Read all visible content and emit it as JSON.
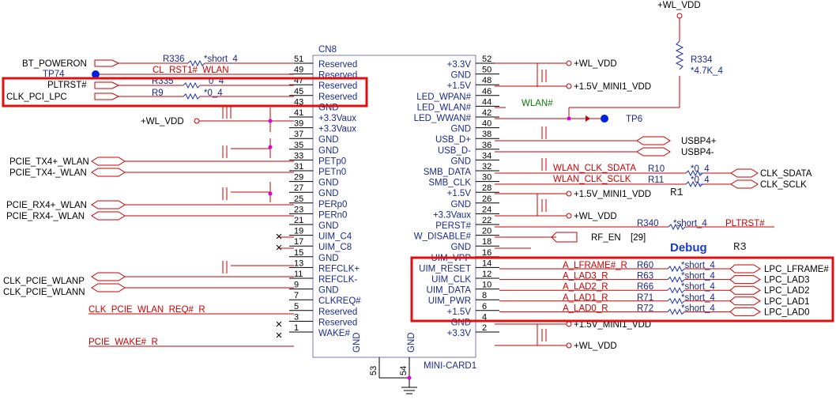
{
  "header": {
    "wl_vdd_top": "+WL_VDD"
  },
  "connector": {
    "ref": "CN8",
    "part": "MINI-CARD1",
    "gnd": "GND",
    "pin53": "53",
    "pin54": "54"
  },
  "left_pins": [
    {
      "num": "51",
      "name": "Reserved"
    },
    {
      "num": "49",
      "name": "Reserved"
    },
    {
      "num": "47",
      "name": "Reserved"
    },
    {
      "num": "45",
      "name": "Reserved"
    },
    {
      "num": "43",
      "name": "GND"
    },
    {
      "num": "41",
      "name": "+3.3Vaux"
    },
    {
      "num": "39",
      "name": "+3.3Vaux"
    },
    {
      "num": "37",
      "name": "GND"
    },
    {
      "num": "35",
      "name": "GND"
    },
    {
      "num": "33",
      "name": "PETp0"
    },
    {
      "num": "31",
      "name": "PETn0"
    },
    {
      "num": "29",
      "name": "GND"
    },
    {
      "num": "27",
      "name": "GND"
    },
    {
      "num": "25",
      "name": "PERp0"
    },
    {
      "num": "23",
      "name": "PERn0"
    },
    {
      "num": "21",
      "name": "GND"
    },
    {
      "num": "19",
      "name": "UIM_C4"
    },
    {
      "num": "17",
      "name": "UIM_C8"
    },
    {
      "num": "15",
      "name": "GND"
    },
    {
      "num": "13",
      "name": "REFCLK+"
    },
    {
      "num": "11",
      "name": "REFCLK-"
    },
    {
      "num": "9",
      "name": "GND"
    },
    {
      "num": "7",
      "name": "CLKREQ#"
    },
    {
      "num": "5",
      "name": "Reserved"
    },
    {
      "num": "3",
      "name": "Reserved"
    },
    {
      "num": "1",
      "name": "WAKE#"
    }
  ],
  "right_pins": [
    {
      "num": "52",
      "name": "+3.3V"
    },
    {
      "num": "50",
      "name": "GND"
    },
    {
      "num": "48",
      "name": "+1.5V"
    },
    {
      "num": "46",
      "name": "LED_WPAN#"
    },
    {
      "num": "44",
      "name": "LED_WLAN#"
    },
    {
      "num": "42",
      "name": "LED_WWAN#"
    },
    {
      "num": "40",
      "name": "GND"
    },
    {
      "num": "38",
      "name": "USB_D+"
    },
    {
      "num": "36",
      "name": "USB_D-"
    },
    {
      "num": "34",
      "name": "GND"
    },
    {
      "num": "32",
      "name": "SMB_DATA"
    },
    {
      "num": "30",
      "name": "SMB_CLK"
    },
    {
      "num": "28",
      "name": "+1.5V"
    },
    {
      "num": "26",
      "name": "GND"
    },
    {
      "num": "24",
      "name": "+3.3Vaux"
    },
    {
      "num": "22",
      "name": "PERST#"
    },
    {
      "num": "20",
      "name": "W_DISABLE#"
    },
    {
      "num": "18",
      "name": "GND"
    },
    {
      "num": "16",
      "name": "UIM_VPP"
    },
    {
      "num": "14",
      "name": "UIM_RESET"
    },
    {
      "num": "12",
      "name": "UIM_CLK"
    },
    {
      "num": "10",
      "name": "UIM_DATA"
    },
    {
      "num": "8",
      "name": "UIM_PWR"
    },
    {
      "num": "6",
      "name": "+1.5V"
    },
    {
      "num": "4",
      "name": "GND"
    },
    {
      "num": "2",
      "name": "+3.3V"
    }
  ],
  "left_nets": {
    "bt_poweron": "BT_POWERON",
    "tp74": "TP74",
    "r336": "R336",
    "r336_val": "*short_4",
    "cl_rst1": "CL_RST1#_WLAN",
    "pltrst": "PLTRST#",
    "r335": "R335",
    "r335_val": "0_4",
    "clk_pci_lpc": "CLK_PCI_LPC",
    "r9": "R9",
    "r9_val": "*0_4",
    "wl_vdd": "+WL_VDD",
    "pcie_tx_p": "PCIE_TX4+_WLAN",
    "pcie_tx_n": "PCIE_TX4-_WLAN",
    "pcie_rx_p": "PCIE_RX4+_WLAN",
    "pcie_rx_n": "PCIE_RX4-_WLAN",
    "clk_wlanp": "CLK_PCIE_WLANP",
    "clk_wlann": "CLK_PCIE_WLANN",
    "clk_req": "CLK_PCIE_WLAN_REQ#_R",
    "pcie_wake": "PCIE_WAKE#_R"
  },
  "right_nets": {
    "wl_vdd_52": "+WL_VDD",
    "v15_48": "+1.5V_MINI1_VDD",
    "r334": "R334",
    "r334_val": "*4.7K_4",
    "wlan_led": "WLAN#",
    "tp6": "TP6",
    "usbp4p": "USBP4+",
    "usbp4n": "USBP4-",
    "wlan_sdata": "WLAN_CLK_SDATA",
    "wlan_sclk": "WLAN_CLK_SCLK",
    "r10": "R10",
    "r10_val": "*0_4",
    "r11": "R11",
    "r11_val": "*0_4",
    "clk_sdata": "CLK_SDATA",
    "clk_sclk": "CLK_SCLK",
    "r1_note": "R1",
    "v15_28": "+1.5V_MINI1_VDD",
    "wl_vdd_24": "+WL_VDD",
    "r340": "R340",
    "r340_val": "*short_4",
    "pltrst_r": "PLTRST#",
    "rf_en": "RF_EN",
    "rf_en_ref": "[29]",
    "debug": "Debug",
    "r3_note": "R3",
    "v15_6": "+1.5V_MINI1_VDD",
    "wl_vdd_2": "+WL_VDD"
  },
  "lpc_rows": [
    {
      "net": "A_LFRAME#_R",
      "res": "R60",
      "val": "*short_4",
      "out": "LPC_LFRAME#"
    },
    {
      "net": "A_LAD3_R",
      "res": "R63",
      "val": "*short_4",
      "out": "LPC_LAD3"
    },
    {
      "net": "A_LAD2_R",
      "res": "R66",
      "val": "*short_4",
      "out": "LPC_LAD2"
    },
    {
      "net": "A_LAD1_R",
      "res": "R71",
      "val": "*short_4",
      "out": "LPC_LAD1"
    },
    {
      "net": "A_LAD0_R",
      "res": "R72",
      "val": "*short_4",
      "out": "LPC_LAD0"
    }
  ],
  "colors": {
    "wire": "#cc0000",
    "net_label": "#1a2a8c",
    "highlight": "#dd1111",
    "junction": "#e000e0"
  }
}
